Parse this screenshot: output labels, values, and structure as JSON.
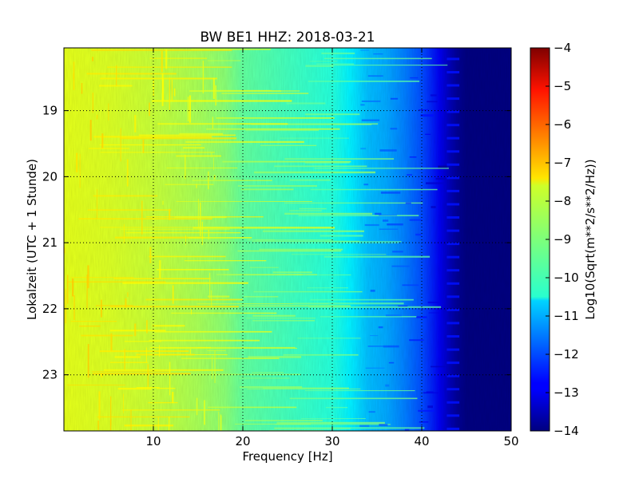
{
  "chart_data": {
    "type": "heatmap",
    "title": "BW BE1 HHZ: 2018-03-21",
    "xlabel": "Frequency [Hz]",
    "ylabel": "Lokalzeit (UTC + 1 Stunde)",
    "xlim": [
      0,
      50
    ],
    "ylim_hours": [
      18.05,
      23.85
    ],
    "x_ticks": [
      10,
      20,
      30,
      40,
      50
    ],
    "x_tick_labels": [
      "10",
      "20",
      "30",
      "40",
      "50"
    ],
    "y_ticks": [
      19,
      20,
      21,
      22,
      23
    ],
    "y_tick_labels": [
      "19",
      "20",
      "21",
      "22",
      "23"
    ],
    "grid": true,
    "colormap": "jet",
    "colorbar": {
      "label": "Log10(Sqrt(m**2/s**2/Hz))",
      "min": -14,
      "max": -4,
      "ticks": [
        -4,
        -5,
        -6,
        -7,
        -8,
        -9,
        -10,
        -11,
        -12,
        -13,
        -14
      ],
      "tick_labels": [
        "−4",
        "−5",
        "−6",
        "−7",
        "−8",
        "−9",
        "−10",
        "−11",
        "−12",
        "−13",
        "−14"
      ]
    },
    "spectrum_profile": {
      "frequency_hz": [
        0,
        5,
        10,
        15,
        18,
        20,
        25,
        30,
        32,
        34,
        36,
        38,
        40,
        42,
        43,
        44,
        45,
        50
      ],
      "log10_amplitude": [
        -8.0,
        -8.1,
        -8.3,
        -8.6,
        -8.9,
        -9.3,
        -9.6,
        -9.9,
        -10.4,
        -10.9,
        -11.1,
        -11.5,
        -12.0,
        -12.9,
        -13.4,
        -13.8,
        -14.0,
        -14.0
      ]
    }
  }
}
